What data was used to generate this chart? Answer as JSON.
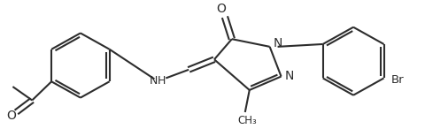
{
  "bg_color": "#ffffff",
  "line_color": "#2d2d2d",
  "bond_lw": 1.5,
  "figsize": [
    4.81,
    1.46
  ],
  "dpi": 100,
  "xlim": [
    0,
    481
  ],
  "ylim": [
    0,
    146
  ]
}
